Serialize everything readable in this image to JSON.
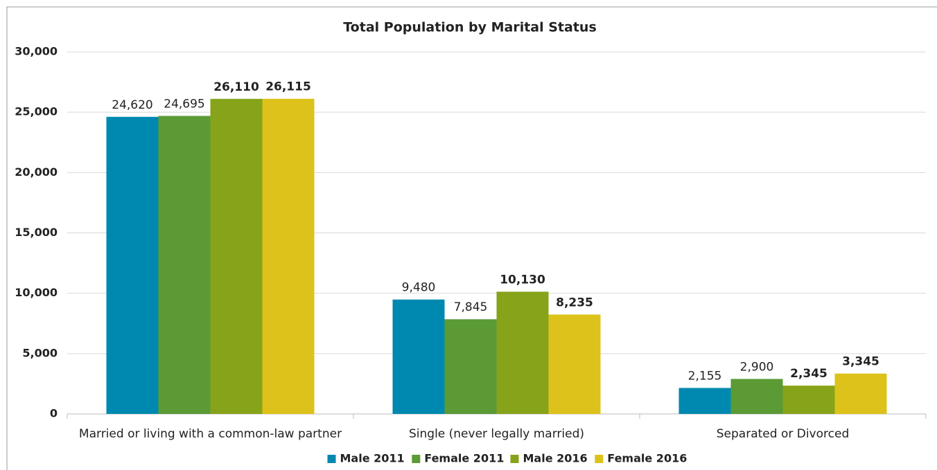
{
  "chart_data": {
    "type": "bar",
    "title": "Total Population by Marital Status",
    "categories": [
      "Married or living with a common-law partner",
      "Single (never legally married)",
      "Separated or Divorced"
    ],
    "series": [
      {
        "name": "Male 2011",
        "color": "#0089b0",
        "values": [
          24620,
          9480,
          2155
        ],
        "value_labels": [
          "24,620",
          "9,480",
          "2,155"
        ],
        "label_weight": "normal"
      },
      {
        "name": "Female 2011",
        "color": "#5b9a35",
        "values": [
          24695,
          7845,
          2900
        ],
        "value_labels": [
          "24,695",
          "7,845",
          "2,900"
        ],
        "label_weight": "normal"
      },
      {
        "name": "Male 2016",
        "color": "#86a31a",
        "values": [
          26110,
          10130,
          2345
        ],
        "value_labels": [
          "26,110",
          "10,130",
          "2,345"
        ],
        "label_weight": "bold"
      },
      {
        "name": "Female 2016",
        "color": "#dcc21a",
        "values": [
          26115,
          8235,
          3345
        ],
        "value_labels": [
          "26,115",
          "8,235",
          "3,345"
        ],
        "label_weight": "bold"
      }
    ],
    "ylim": [
      0,
      30000
    ],
    "yticks": [
      0,
      {
        "value": 5000,
        "label": "5,000"
      },
      {
        "value": 10000,
        "label": "10,000"
      },
      {
        "value": 15000,
        "label": "15,000"
      },
      {
        "value": 20000,
        "label": "20,000"
      },
      {
        "value": 25000,
        "label": "25,000"
      },
      {
        "value": 30000,
        "label": "30,000"
      }
    ],
    "grid": true,
    "legend": "bottom"
  }
}
